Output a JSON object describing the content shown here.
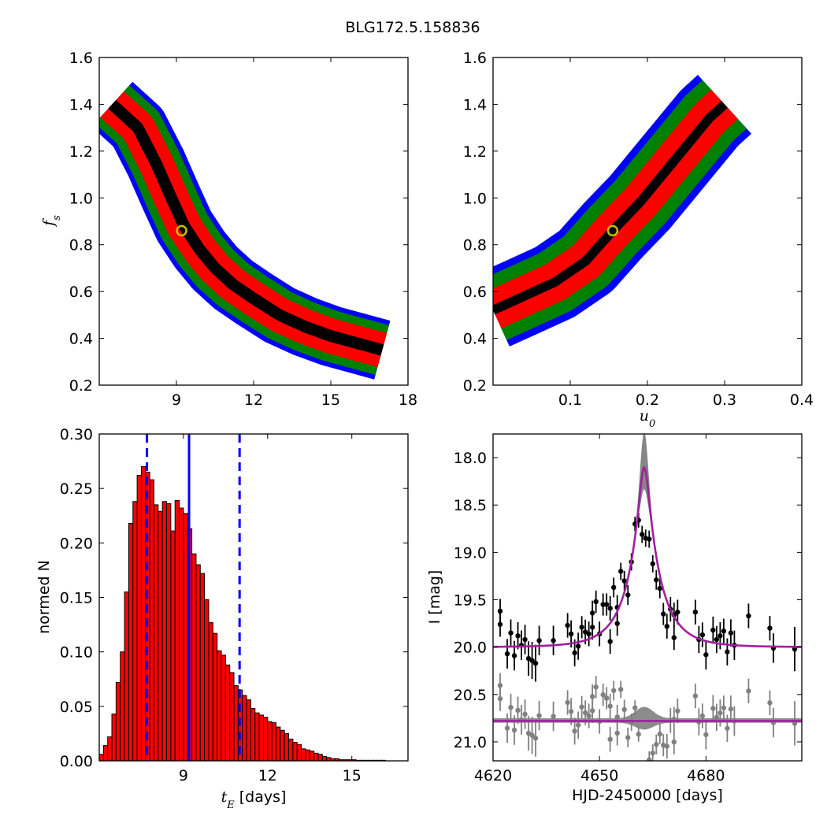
{
  "figure_title": "BLG172.5.158836",
  "colors": {
    "sigma1": "#000000",
    "sigma2": "#ff0000",
    "sigma3": "#008000",
    "outer": "#0000ff",
    "best_fit_marker": "#bfbf00",
    "hist_fill": "#ff0000",
    "median_line": "#0000ff",
    "model_curve": "#a020a0",
    "data_points": "#000000",
    "residual_points": "#808080",
    "model_band": "#808080"
  },
  "chart_data": [
    {
      "id": "fs-vs-tE",
      "type": "heatmap",
      "title": "",
      "xlabel": "",
      "ylabel": "f_s",
      "ylabel_sub": "s",
      "xlim": [
        6.0,
        18.0
      ],
      "ylim": [
        0.2,
        1.6
      ],
      "xticks": [
        9,
        12,
        15,
        18
      ],
      "yticks": [
        0.2,
        0.4,
        0.6,
        0.8,
        1.0,
        1.2,
        1.4,
        1.6
      ],
      "ytick_labels": [
        "0.2",
        "0.4",
        "0.6",
        "0.8",
        "1.0",
        "1.2",
        "1.4",
        "1.6"
      ],
      "best_fit": {
        "x": 9.2,
        "y": 0.86
      },
      "ridge": [
        [
          6.5,
          1.4
        ],
        [
          7.5,
          1.3
        ],
        [
          8.2,
          1.15
        ],
        [
          8.8,
          1.0
        ],
        [
          9.3,
          0.88
        ],
        [
          9.9,
          0.78
        ],
        [
          10.5,
          0.7
        ],
        [
          11.2,
          0.63
        ],
        [
          12.0,
          0.57
        ],
        [
          13.0,
          0.5
        ],
        [
          14.0,
          0.45
        ],
        [
          15.0,
          0.41
        ],
        [
          16.0,
          0.38
        ],
        [
          17.0,
          0.35
        ]
      ],
      "region_half_widths": {
        "sigma1": 0.025,
        "sigma2": 0.075,
        "sigma3": 0.11,
        "outer": 0.13
      }
    },
    {
      "id": "fs-vs-u0",
      "type": "heatmap",
      "title": "",
      "xlabel": "u_0",
      "xlabel_sub": "0",
      "ylabel": "",
      "xlim": [
        0.0,
        0.4
      ],
      "ylim": [
        0.2,
        1.6
      ],
      "xticks": [
        0.1,
        0.2,
        0.3,
        0.4
      ],
      "xtick_labels": [
        "0.1",
        "0.2",
        "0.3",
        "0.4"
      ],
      "yticks": [
        0.2,
        0.4,
        0.6,
        0.8,
        1.0,
        1.2,
        1.4,
        1.6
      ],
      "ytick_labels": [
        "0.2",
        "0.4",
        "0.6",
        "0.8",
        "1.0",
        "1.2",
        "1.4",
        "1.6"
      ],
      "best_fit": {
        "x": 0.155,
        "y": 0.86
      },
      "ridge": [
        [
          0.0,
          0.52
        ],
        [
          0.04,
          0.58
        ],
        [
          0.08,
          0.64
        ],
        [
          0.12,
          0.73
        ],
        [
          0.155,
          0.86
        ],
        [
          0.19,
          0.98
        ],
        [
          0.22,
          1.1
        ],
        [
          0.25,
          1.22
        ],
        [
          0.28,
          1.34
        ],
        [
          0.3,
          1.4
        ]
      ],
      "region_half_widths": {
        "sigma1": 0.02,
        "sigma2": 0.085,
        "sigma3": 0.14,
        "outer": 0.17
      }
    },
    {
      "id": "tE-histogram",
      "type": "bar",
      "title": "",
      "xlabel": "t_E [days]",
      "xlabel_sub": "E",
      "xlabel_unit": "[days]",
      "ylabel": "normed N",
      "xlim": [
        6.0,
        17.0
      ],
      "ylim": [
        0.0,
        0.3
      ],
      "xticks": [
        9,
        12,
        15
      ],
      "yticks": [
        0.0,
        0.05,
        0.1,
        0.15,
        0.2,
        0.25,
        0.3
      ],
      "ytick_labels": [
        "0.00",
        "0.05",
        "0.10",
        "0.15",
        "0.20",
        "0.25",
        "0.30"
      ],
      "bin_start": 6.0,
      "bin_width": 0.15,
      "values": [
        0.006,
        0.014,
        0.022,
        0.043,
        0.072,
        0.1,
        0.155,
        0.218,
        0.238,
        0.262,
        0.27,
        0.265,
        0.258,
        0.235,
        0.229,
        0.238,
        0.236,
        0.211,
        0.239,
        0.232,
        0.227,
        0.213,
        0.19,
        0.18,
        0.172,
        0.148,
        0.127,
        0.117,
        0.101,
        0.097,
        0.088,
        0.081,
        0.069,
        0.065,
        0.06,
        0.056,
        0.048,
        0.044,
        0.042,
        0.04,
        0.036,
        0.035,
        0.031,
        0.028,
        0.025,
        0.02,
        0.017,
        0.015,
        0.011,
        0.01,
        0.009,
        0.007,
        0.006,
        0.004,
        0.003,
        0.002,
        0.002,
        0.001,
        0.001,
        0.001,
        0.001,
        0.0005,
        0.0005,
        0.0005,
        0.0005,
        0.0005,
        0.0005,
        0.0005
      ],
      "median": 9.2,
      "interval": [
        7.7,
        11.0
      ]
    },
    {
      "id": "light-curve",
      "type": "scatter",
      "title": "",
      "xlabel": "HJD-2450000 [days]",
      "ylabel": "I [mag]",
      "xlim": [
        4620,
        4707
      ],
      "ylim": [
        21.2,
        17.75
      ],
      "xticks": [
        4620,
        4650,
        4680
      ],
      "yticks": [
        18.0,
        18.5,
        19.0,
        19.5,
        20.0,
        20.5,
        21.0
      ],
      "ytick_labels": [
        "18.0",
        "18.5",
        "19.0",
        "19.5",
        "20.0",
        "20.5",
        "21.0"
      ],
      "model": {
        "t0": 4662.6,
        "tE": 9.2,
        "u0": 0.155,
        "fs": 0.86,
        "base_mag": 20.0,
        "residual_offset": 20.78
      },
      "band": {
        "t0": 4662.6,
        "peak_width": 1.2,
        "peak_mag_top": 17.75
      },
      "points": [
        [
          4622,
          19.62,
          0.1
        ],
        [
          4622,
          19.76,
          0.1
        ],
        [
          4624,
          20.07,
          0.12
        ],
        [
          4625,
          19.85,
          0.11
        ],
        [
          4626,
          20.09,
          0.12
        ],
        [
          4627,
          19.88,
          0.11
        ],
        [
          4628,
          19.98,
          0.12
        ],
        [
          4629,
          19.92,
          0.12
        ],
        [
          4630,
          20.12,
          0.14
        ],
        [
          4631,
          20.14,
          0.15
        ],
        [
          4632,
          20.17,
          0.15
        ],
        [
          4633,
          19.93,
          0.12
        ],
        [
          4637,
          19.93,
          0.12
        ],
        [
          4641,
          19.77,
          0.1
        ],
        [
          4642,
          19.86,
          0.11
        ],
        [
          4643,
          20.06,
          0.11
        ],
        [
          4644,
          19.99,
          0.11
        ],
        [
          4645,
          19.79,
          0.09
        ],
        [
          4646,
          19.84,
          0.1
        ],
        [
          4647,
          19.86,
          0.1
        ],
        [
          4648,
          19.64,
          0.1
        ],
        [
          4648,
          19.79,
          0.1
        ],
        [
          4649,
          19.52,
          0.09
        ],
        [
          4650,
          19.86,
          0.1
        ],
        [
          4651,
          19.55,
          0.09
        ],
        [
          4652,
          19.55,
          0.09
        ],
        [
          4653,
          19.59,
          0.1
        ],
        [
          4653,
          19.94,
          0.1
        ],
        [
          4654,
          19.37,
          0.08
        ],
        [
          4655,
          19.58,
          0.1
        ],
        [
          4655,
          19.75,
          0.1
        ],
        [
          4656,
          19.2,
          0.07
        ],
        [
          4657,
          19.3,
          0.08
        ],
        [
          4658,
          19.45,
          0.08
        ],
        [
          4659,
          19.1,
          0.07
        ],
        [
          4660,
          18.7,
          0.06
        ],
        [
          4661,
          18.66,
          0.06
        ],
        [
          4662,
          18.81,
          0.07
        ],
        [
          4663,
          18.85,
          0.07
        ],
        [
          4664,
          18.86,
          0.07
        ],
        [
          4665,
          19.12,
          0.07
        ],
        [
          4666,
          19.29,
          0.08
        ],
        [
          4667,
          19.38,
          0.08
        ],
        [
          4668,
          19.65,
          0.09
        ],
        [
          4669,
          19.78,
          0.1
        ],
        [
          4670,
          19.6,
          0.1
        ],
        [
          4671,
          19.66,
          0.1
        ],
        [
          4671,
          19.9,
          0.1
        ],
        [
          4672,
          19.63,
          0.1
        ],
        [
          4677,
          19.63,
          0.1
        ],
        [
          4678,
          19.92,
          0.11
        ],
        [
          4679,
          19.87,
          0.1
        ],
        [
          4680,
          20.08,
          0.12
        ],
        [
          4682,
          19.82,
          0.11
        ],
        [
          4683,
          19.92,
          0.11
        ],
        [
          4684,
          19.88,
          0.11
        ],
        [
          4685,
          19.83,
          0.1
        ],
        [
          4686,
          20.05,
          0.11
        ],
        [
          4687,
          19.85,
          0.11
        ],
        [
          4688,
          19.98,
          0.12
        ],
        [
          4692,
          19.67,
          0.1
        ],
        [
          4698,
          19.8,
          0.1
        ],
        [
          4699,
          20.01,
          0.12
        ],
        [
          4705,
          20.02,
          0.18
        ]
      ]
    }
  ]
}
